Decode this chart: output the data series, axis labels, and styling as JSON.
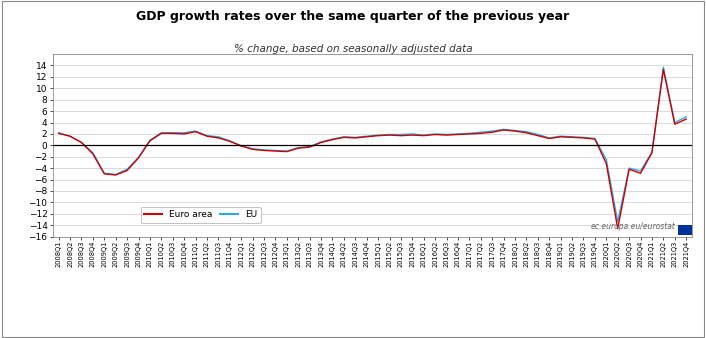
{
  "title": "GDP growth rates over the same quarter of the previous year",
  "subtitle": "% change, based on seasonally adjusted data",
  "watermark": "ec.europa.eu/eurostat",
  "legend": [
    "Euro area",
    "EU"
  ],
  "line_colors": [
    "#cc0000",
    "#29abe2"
  ],
  "ylim": [
    -16,
    16
  ],
  "yticks": [
    -16,
    -14,
    -12,
    -10,
    -8,
    -6,
    -4,
    -2,
    0,
    2,
    4,
    6,
    8,
    10,
    12,
    14
  ],
  "quarters": [
    "2008Q1",
    "2008Q2",
    "2008Q3",
    "2008Q4",
    "2009Q1",
    "2009Q2",
    "2009Q3",
    "2009Q4",
    "2010Q1",
    "2010Q2",
    "2010Q3",
    "2010Q4",
    "2011Q1",
    "2011Q2",
    "2011Q3",
    "2011Q4",
    "2012Q1",
    "2012Q2",
    "2012Q3",
    "2012Q4",
    "2013Q1",
    "2013Q2",
    "2013Q3",
    "2013Q4",
    "2014Q1",
    "2014Q2",
    "2014Q3",
    "2014Q4",
    "2015Q1",
    "2015Q2",
    "2015Q3",
    "2015Q4",
    "2016Q1",
    "2016Q2",
    "2016Q3",
    "2016Q4",
    "2017Q1",
    "2017Q2",
    "2017Q3",
    "2017Q4",
    "2018Q1",
    "2018Q2",
    "2018Q3",
    "2018Q4",
    "2019Q1",
    "2019Q2",
    "2019Q3",
    "2019Q4",
    "2020Q1",
    "2020Q2",
    "2020Q3",
    "2020Q4",
    "2021Q1",
    "2021Q2",
    "2021Q3",
    "2021Q4"
  ],
  "euro_area": [
    2.1,
    1.6,
    0.5,
    -1.5,
    -5.0,
    -5.2,
    -4.4,
    -2.2,
    0.8,
    2.1,
    2.1,
    2.0,
    2.4,
    1.6,
    1.3,
    0.7,
    -0.1,
    -0.7,
    -0.9,
    -1.0,
    -1.1,
    -0.5,
    -0.3,
    0.5,
    1.0,
    1.4,
    1.3,
    1.5,
    1.7,
    1.8,
    1.7,
    1.8,
    1.7,
    1.9,
    1.8,
    1.9,
    2.0,
    2.1,
    2.3,
    2.7,
    2.5,
    2.2,
    1.7,
    1.2,
    1.5,
    1.4,
    1.3,
    1.1,
    -3.2,
    -14.6,
    -4.2,
    -4.9,
    -1.3,
    13.3,
    3.7,
    4.6
  ],
  "eu": [
    2.2,
    1.6,
    0.5,
    -1.3,
    -4.9,
    -5.1,
    -4.2,
    -2.1,
    0.9,
    2.2,
    2.2,
    2.2,
    2.5,
    1.7,
    1.5,
    0.8,
    -0.1,
    -0.6,
    -0.8,
    -0.9,
    -1.0,
    -0.4,
    -0.2,
    0.6,
    1.1,
    1.5,
    1.4,
    1.6,
    1.8,
    1.9,
    1.9,
    2.0,
    1.8,
    2.0,
    1.9,
    2.0,
    2.1,
    2.3,
    2.5,
    2.8,
    2.6,
    2.4,
    1.9,
    1.3,
    1.6,
    1.5,
    1.4,
    1.2,
    -2.5,
    -13.4,
    -4.0,
    -4.5,
    -1.2,
    13.7,
    4.0,
    5.0
  ],
  "bg_color": "#ffffff",
  "grid_color": "#cccccc",
  "title_fontsize": 9,
  "subtitle_fontsize": 7.5
}
